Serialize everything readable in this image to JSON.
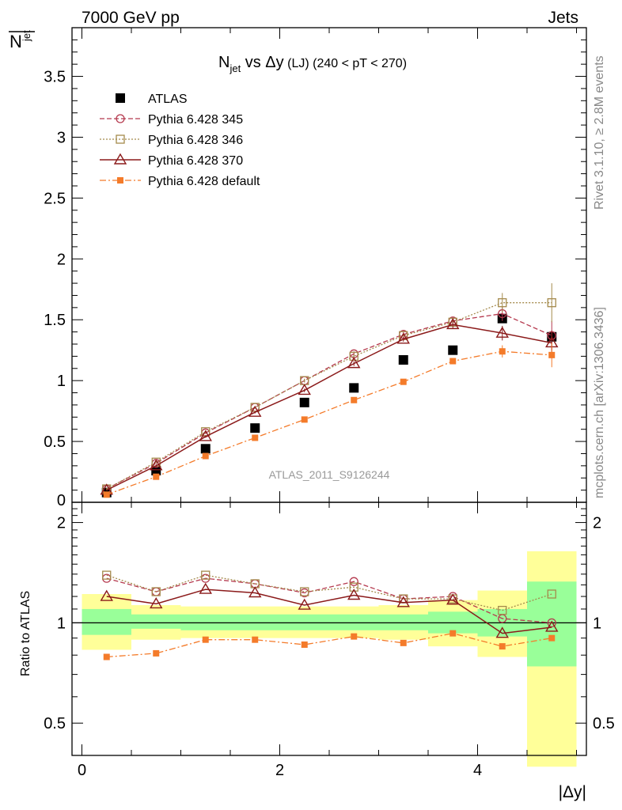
{
  "header": {
    "left": "7000 GeV pp",
    "right": "Jets"
  },
  "side_labels": {
    "rivet": "Rivet 3.1.10, ≥ 2.8M events",
    "mcplots": "mcplots.cern.ch [arXiv:1306.3436]"
  },
  "watermark": "ATLAS_2011_S9126244",
  "colors": {
    "atlas": "#000000",
    "p345": "#b5394e",
    "p346": "#a48a4c",
    "p370": "#8b1a1a",
    "pdef": "#f47b2a",
    "band_green": "#99ff99",
    "band_yellow": "#ffff99"
  },
  "chart_data": [
    {
      "type": "scatter",
      "panel": "main",
      "title_parts": {
        "n": "N",
        "sub": "jet",
        "vs": " vs Δy",
        "lj": " (LJ)",
        "range": " (240 < pT < 270)"
      },
      "ylabel_main": "N",
      "ylabel_sub": "jet",
      "ylim": [
        0,
        3.9
      ],
      "yticks": [
        0.5,
        1,
        1.5,
        2,
        2.5,
        3,
        3.5
      ],
      "ytick_labels": [
        "0.5",
        "1",
        "1.5",
        "2",
        "2.5",
        "3",
        "3.5"
      ],
      "y_zero_label": "0",
      "x": [
        0.25,
        0.75,
        1.25,
        1.75,
        2.25,
        2.75,
        3.25,
        3.75,
        4.25,
        4.75
      ],
      "x_edges": [
        0,
        0.5,
        1,
        1.5,
        2,
        2.5,
        3,
        3.5,
        4,
        4.5,
        5
      ],
      "series": [
        {
          "key": "atlas",
          "name": "ATLAS",
          "values": [
            0.08,
            0.26,
            0.44,
            0.61,
            0.82,
            0.94,
            1.17,
            1.25,
            1.51,
            1.36
          ],
          "errors": [
            0.01,
            0.01,
            0.01,
            0.01,
            0.01,
            0.01,
            0.01,
            0.01,
            0.02,
            0.04
          ]
        },
        {
          "key": "p345",
          "name": "Pythia 6.428 345",
          "values": [
            0.11,
            0.32,
            0.57,
            0.78,
            1.0,
            1.22,
            1.38,
            1.49,
            1.55,
            1.37
          ],
          "errors": [
            0.005,
            0.01,
            0.01,
            0.01,
            0.015,
            0.02,
            0.02,
            0.03,
            0.06,
            0.12
          ]
        },
        {
          "key": "p346",
          "name": "Pythia 6.428 346",
          "values": [
            0.11,
            0.33,
            0.58,
            0.78,
            1.0,
            1.2,
            1.37,
            1.48,
            1.64,
            1.64
          ],
          "errors": [
            0.005,
            0.01,
            0.01,
            0.01,
            0.015,
            0.02,
            0.02,
            0.03,
            0.08,
            0.16
          ]
        },
        {
          "key": "p370",
          "name": "Pythia 6.428 370",
          "values": [
            0.1,
            0.3,
            0.54,
            0.74,
            0.92,
            1.14,
            1.34,
            1.46,
            1.39,
            1.31
          ],
          "errors": [
            0.005,
            0.01,
            0.01,
            0.01,
            0.015,
            0.02,
            0.02,
            0.03,
            0.06,
            0.1
          ]
        },
        {
          "key": "pdef",
          "name": "Pythia 6.428 default",
          "values": [
            0.063,
            0.21,
            0.38,
            0.53,
            0.68,
            0.84,
            0.99,
            1.16,
            1.24,
            1.21
          ],
          "errors": [
            0.005,
            0.01,
            0.01,
            0.01,
            0.01,
            0.015,
            0.015,
            0.02,
            0.05,
            0.1
          ]
        }
      ]
    },
    {
      "type": "scatter",
      "panel": "ratio",
      "ylabel": "Ratio to ATLAS",
      "xlabel": "|Δy|",
      "ylim": [
        0.4,
        2.3
      ],
      "y_log": true,
      "yticks": [
        0.5,
        1,
        2
      ],
      "ytick_labels": [
        "0.5",
        "1",
        "2"
      ],
      "xlim": [
        -0.1,
        5.1
      ],
      "xticks": [
        0,
        2,
        4
      ],
      "xtick_labels": [
        "0",
        "2",
        "4"
      ],
      "x": [
        0.25,
        0.75,
        1.25,
        1.75,
        2.25,
        2.75,
        3.25,
        3.75,
        4.25,
        4.75
      ],
      "band_green": [
        [
          0.92,
          1.1
        ],
        [
          0.96,
          1.06
        ],
        [
          0.95,
          1.06
        ],
        [
          0.95,
          1.06
        ],
        [
          0.95,
          1.06
        ],
        [
          0.95,
          1.06
        ],
        [
          0.95,
          1.06
        ],
        [
          0.93,
          1.08
        ],
        [
          0.91,
          1.1
        ],
        [
          0.74,
          1.33
        ]
      ],
      "band_yellow": [
        [
          0.83,
          1.22
        ],
        [
          0.89,
          1.13
        ],
        [
          0.9,
          1.12
        ],
        [
          0.9,
          1.12
        ],
        [
          0.9,
          1.12
        ],
        [
          0.9,
          1.12
        ],
        [
          0.89,
          1.13
        ],
        [
          0.85,
          1.17
        ],
        [
          0.79,
          1.25
        ],
        [
          0.37,
          1.64
        ]
      ],
      "series": [
        {
          "key": "p345",
          "name": "Pythia 6.428 345",
          "values": [
            1.36,
            1.24,
            1.36,
            1.31,
            1.23,
            1.33,
            1.18,
            1.2,
            1.03,
            1.0
          ]
        },
        {
          "key": "p346",
          "name": "Pythia 6.428 346",
          "values": [
            1.39,
            1.24,
            1.39,
            1.31,
            1.24,
            1.28,
            1.18,
            1.18,
            1.09,
            1.22
          ]
        },
        {
          "key": "p370",
          "name": "Pythia 6.428 370",
          "values": [
            1.2,
            1.14,
            1.26,
            1.23,
            1.13,
            1.21,
            1.15,
            1.17,
            0.93,
            0.97
          ]
        },
        {
          "key": "pdef",
          "name": "Pythia 6.428 default",
          "values": [
            0.79,
            0.81,
            0.89,
            0.89,
            0.86,
            0.91,
            0.87,
            0.93,
            0.85,
            0.9
          ]
        }
      ]
    }
  ]
}
